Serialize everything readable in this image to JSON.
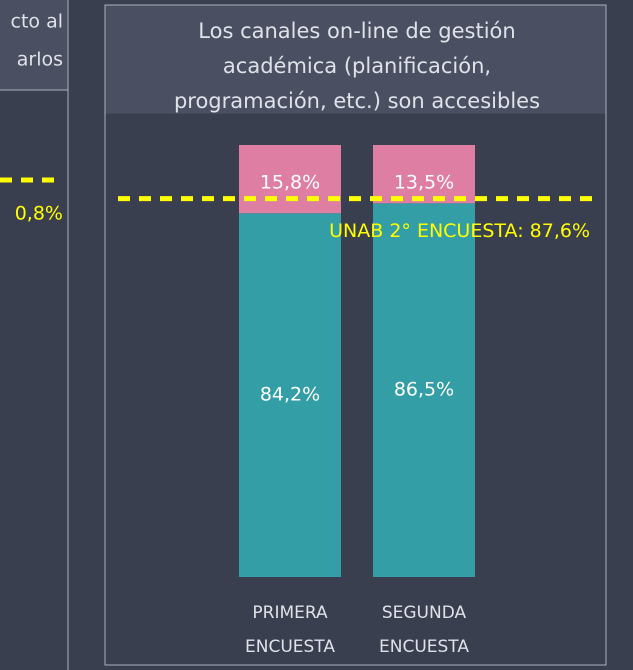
{
  "left_panel": {
    "title_lines": [
      "cto al",
      "arlos"
    ],
    "reference_label": "0,8%"
  },
  "chart_data": {
    "type": "bar",
    "stacked": true,
    "title": [
      "Los canales on-line de gestión",
      "académica (planificación,",
      "programación, etc.) son accesibles"
    ],
    "categories": [
      [
        "PRIMERA",
        "ENCUESTA"
      ],
      [
        "SEGUNDA",
        "ENCUESTA"
      ]
    ],
    "series": [
      {
        "color": "#339ea5",
        "values": [
          84.2,
          86.5
        ],
        "value_labels": [
          "84,2%",
          "86,5%"
        ]
      },
      {
        "color": "#de7ea2",
        "values": [
          15.8,
          13.5
        ],
        "value_labels": [
          "15,8%",
          "13,5%"
        ]
      }
    ],
    "ylim": [
      0,
      100
    ],
    "reference_line": {
      "value": 87.6,
      "label": "UNAB 2° ENCUESTA: 87,6%",
      "color": "#ffff00"
    }
  }
}
